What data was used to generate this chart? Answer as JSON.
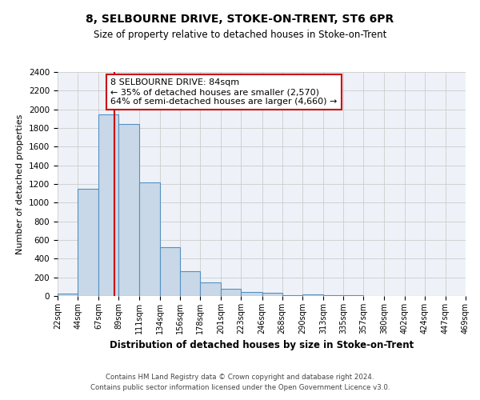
{
  "title": "8, SELBOURNE DRIVE, STOKE-ON-TRENT, ST6 6PR",
  "subtitle": "Size of property relative to detached houses in Stoke-on-Trent",
  "xlabel": "Distribution of detached houses by size in Stoke-on-Trent",
  "ylabel": "Number of detached properties",
  "bin_edges": [
    22,
    44,
    67,
    89,
    111,
    134,
    156,
    178,
    201,
    223,
    246,
    268,
    290,
    313,
    335,
    357,
    380,
    402,
    424,
    447,
    469
  ],
  "bin_labels": [
    "22sqm",
    "44sqm",
    "67sqm",
    "89sqm",
    "111sqm",
    "134sqm",
    "156sqm",
    "178sqm",
    "201sqm",
    "223sqm",
    "246sqm",
    "268sqm",
    "290sqm",
    "313sqm",
    "335sqm",
    "357sqm",
    "380sqm",
    "402sqm",
    "424sqm",
    "447sqm",
    "469sqm"
  ],
  "counts": [
    25,
    1150,
    1950,
    1840,
    1220,
    520,
    265,
    148,
    75,
    45,
    35,
    10,
    15,
    5,
    5,
    2,
    2,
    2,
    1,
    1
  ],
  "bar_facecolor": "#c8d8e8",
  "bar_edgecolor": "#5590c0",
  "grid_color": "#cccccc",
  "background_color": "#eef2f8",
  "vline_x": 84,
  "vline_color": "#cc0000",
  "annotation_title": "8 SELBOURNE DRIVE: 84sqm",
  "annotation_line1": "← 35% of detached houses are smaller (2,570)",
  "annotation_line2": "64% of semi-detached houses are larger (4,660) →",
  "annotation_box_edgecolor": "#cc0000",
  "footer_line1": "Contains HM Land Registry data © Crown copyright and database right 2024.",
  "footer_line2": "Contains public sector information licensed under the Open Government Licence v3.0.",
  "ylim": [
    0,
    2400
  ],
  "yticks": [
    0,
    200,
    400,
    600,
    800,
    1000,
    1200,
    1400,
    1600,
    1800,
    2000,
    2200,
    2400
  ]
}
